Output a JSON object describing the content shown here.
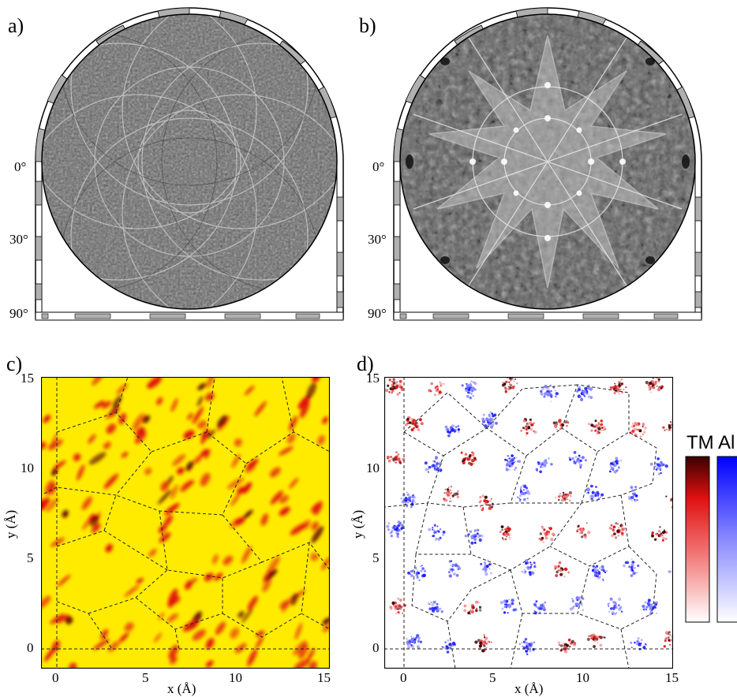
{
  "panels": {
    "a": {
      "label": "a)",
      "deg_labels": [
        "0°",
        "30°",
        "90°"
      ]
    },
    "b": {
      "label": "b)",
      "deg_labels": [
        "0°",
        "30°",
        "90°"
      ]
    },
    "c": {
      "label": "c)",
      "xlabel": "x (Å)",
      "ylabel": "y (Å)",
      "xticks": [
        "0",
        "5",
        "10",
        "15"
      ],
      "yticks": [
        "0",
        "5",
        "10",
        "15"
      ]
    },
    "d": {
      "label": "d)",
      "xlabel": "x (Å)",
      "ylabel": "y (Å)",
      "xticks": [
        "0",
        "5",
        "10",
        "15"
      ],
      "yticks": [
        "0",
        "5",
        "10",
        "15"
      ]
    }
  },
  "colorbars": {
    "tm_label": "TM",
    "al_label": "Al"
  },
  "colors": {
    "yellow": "#ffeb00",
    "red": "#e01010",
    "darkred": "#5a0000",
    "blue": "#1a1aff",
    "gray": "#6e6e6e"
  }
}
